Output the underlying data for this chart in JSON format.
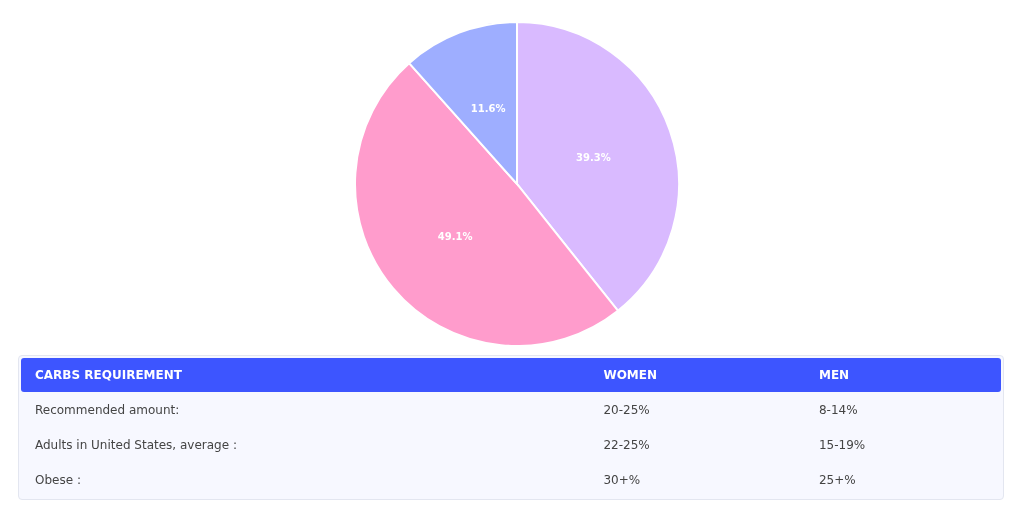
{
  "chart_data": [
    {
      "type": "pie",
      "categories": [
        null,
        null,
        null
      ],
      "values": [
        39.3,
        49.1,
        11.6
      ],
      "colors": [
        "#d9baff",
        "#ff9ccc",
        "#9eaeff"
      ],
      "value_labels": [
        "39.3%",
        "49.1%",
        "11.6%"
      ]
    },
    {
      "type": "other",
      "categories": [
        "CARBS REQUIREMENT",
        "WOMEN",
        "MEN"
      ],
      "y_categories": [
        "Recommended amount:",
        "Adults in United States, average :",
        "Obese :"
      ],
      "cell_labels": [
        [
          "20-25%",
          "8-14%"
        ],
        [
          "22-25%",
          "15-19%"
        ],
        [
          "30+%",
          "25+%"
        ]
      ]
    }
  ]
}
